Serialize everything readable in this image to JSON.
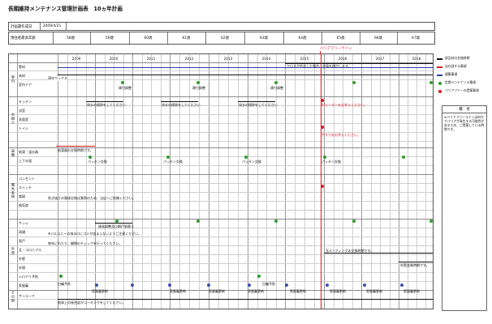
{
  "title": "長期維持メンテナンス管理計画表　10ヵ年計画",
  "header": {
    "date_label": "計画書作成日",
    "date_value": "2009/4/21",
    "age_label": "現住者最高年齢",
    "ages": [
      "58歳",
      "59歳",
      "60歳",
      "61歳",
      "62歳",
      "63歳",
      "64歳",
      "65歳",
      "66歳",
      "67歳"
    ]
  },
  "years": [
    "2009",
    "2010",
    "2011",
    "2012",
    "2013",
    "2014",
    "2015",
    "2016",
    "2017",
    "2018"
  ],
  "barrier_free_label": "バリアフリーライン",
  "categories": [
    "室内",
    "水廻り",
    "設備",
    "電気系統",
    "外部",
    "その他"
  ],
  "items": [
    "壁材",
    "床材",
    "室内ドア",
    "キッチン",
    "浴室",
    "洗面室",
    "トイレ",
    "給湯・温水器",
    "上下水道",
    "コンセント",
    "スイッチ",
    "電球",
    "換気扇",
    "サッシ",
    "雨樋",
    "雨戸",
    "瓦・コロニアル",
    "外壁",
    "外塀",
    "シロアリ予防",
    "家屋審",
    "サンルーフ"
  ],
  "notes": {
    "wall_note": "クロスが劣化した場合、交換を検討します。",
    "wax": "適年ワックス",
    "door_adjust": "建付調整",
    "drain_clean": "排水の掃除をしてください",
    "barrier_kitchen": "IHヒーターをお考えください。",
    "barrier_toilet": "手すりをお考えください。",
    "heater_replace": "給湯器の交換時期です。",
    "packing": "パッキン交換",
    "bulb": "吹き抜けの電球交換は異熟のため、当店へご依頼ください。",
    "sash": "建具調整及び網戸張替え",
    "gutter": "※バルコニーの排水口にゴミが詰まらないようご注意ください。",
    "shutter": "毎年にわたり、開閉のチェックを行ってください。",
    "roof": "瓦ルーフィングの交換時期です。",
    "exterior_paint": "外壁塗装時期です。",
    "termite": "白蟻予防",
    "house_update": "家屋審更新",
    "sunroof": "船体上の接合部がコーキングをしてください。"
  },
  "legend": [
    "部品材の交換時期",
    "自在部する事項",
    "建築事項",
    "定期メンテナンス事項",
    "バリアフリーの提案事項"
  ],
  "colors": {
    "red": "#e0141e",
    "blue": "#2a3fa8",
    "green": "#2ca02c",
    "black": "#111111",
    "navy": "#3a4fb8"
  },
  "remarks": {
    "title": "備　考",
    "body": "※バリアフリーラインは何かでバリアが発生する可能性があるため、ご提案している時期です。"
  }
}
